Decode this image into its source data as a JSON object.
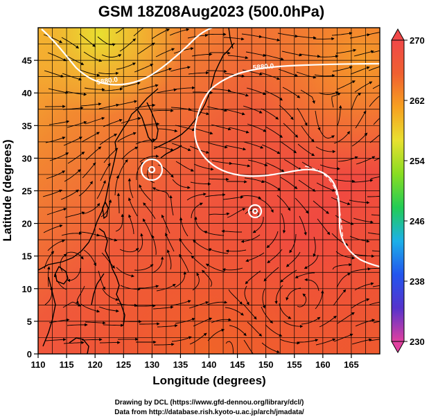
{
  "title": "GSM 18Z08Aug2023 (500.0hPa)",
  "x_axis": {
    "label": "Longitude (degrees)",
    "range": [
      110,
      170
    ],
    "ticks": [
      110,
      115,
      120,
      125,
      130,
      135,
      140,
      145,
      150,
      155,
      160,
      165
    ]
  },
  "y_axis": {
    "label": "Latitude  (degrees)",
    "range": [
      0,
      50
    ],
    "ticks": [
      0,
      5,
      10,
      15,
      20,
      25,
      30,
      35,
      40,
      45
    ]
  },
  "colorbar": {
    "ticks": [
      270,
      262,
      254,
      246,
      238,
      230
    ],
    "range": [
      230,
      270
    ],
    "colors": [
      "#e0409f",
      "#5533cc",
      "#2255ee",
      "#1cb0e8",
      "#22cc55",
      "#88dd22",
      "#e8e030",
      "#f7a020",
      "#f06030",
      "#f04848"
    ]
  },
  "contour_labels": [
    "5880.0",
    "5880.0"
  ],
  "credits": {
    "line1": "Drawing by DCL (https://www.gfd-dennou.org/library/dcl/)",
    "line2": "Data from http://database.rish.kyoto-u.ac.jp/arch/jmadata/"
  }
}
